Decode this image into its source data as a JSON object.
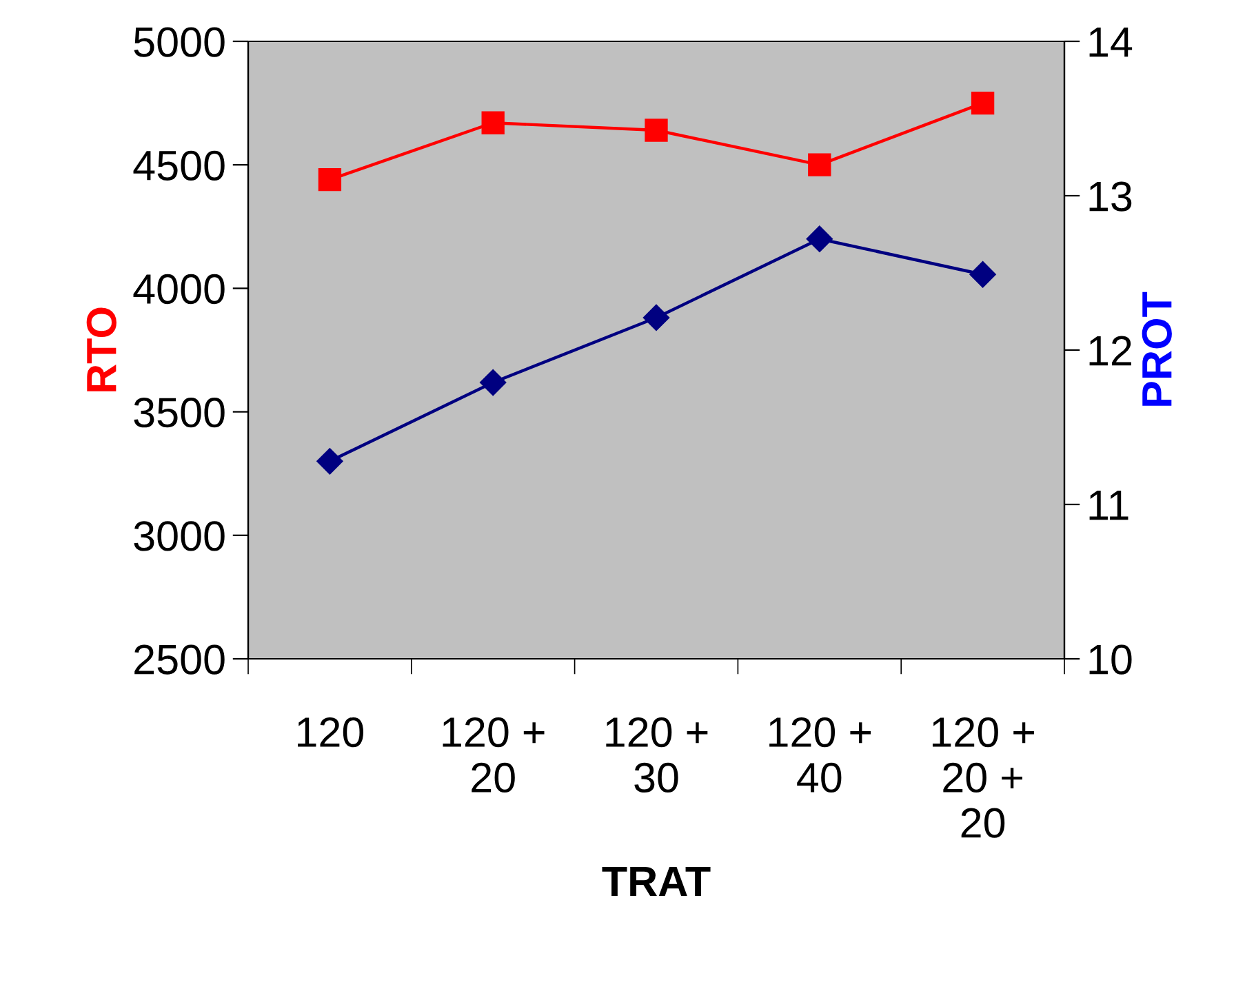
{
  "chart_data": {
    "type": "line",
    "xlabel": "TRAT",
    "ylabel": "RTO",
    "y2label": "PROT",
    "categories": [
      "120",
      "120 +\n20",
      "120 +\n30",
      "120 +\n40",
      "120 +\n20 +\n20"
    ],
    "series": [
      {
        "color": "#ff0000",
        "marker": "square",
        "values": [
          4440,
          4670,
          4640,
          4500,
          4750
        ]
      },
      {
        "color": "#000080",
        "marker": "diamond",
        "axis": "y2",
        "values": [
          11.28,
          11.79,
          12.21,
          12.72,
          12.49
        ]
      }
    ],
    "ylim": [
      2500,
      5000
    ],
    "yticks": [
      2500,
      3000,
      3500,
      4000,
      4500,
      5000
    ],
    "y2lim": [
      10,
      14
    ],
    "y2ticks": [
      10,
      11,
      12,
      13,
      14
    ],
    "grid": false,
    "line_style": "solid"
  }
}
